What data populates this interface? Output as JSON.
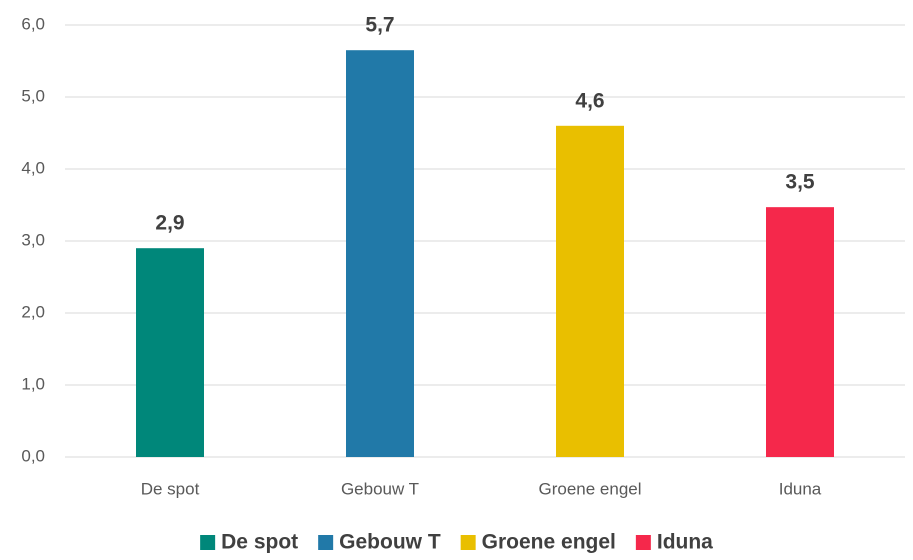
{
  "chart_data": {
    "type": "bar",
    "categories": [
      "De spot",
      "Gebouw T",
      "Groene engel",
      "Iduna"
    ],
    "values": [
      2.9,
      5.65,
      4.6,
      3.47
    ],
    "value_labels": [
      "2,9",
      "5,7",
      "4,6",
      "3,5"
    ],
    "colors": [
      "#00877a",
      "#2179a8",
      "#e9bf00",
      "#f5284b"
    ],
    "ylim": [
      0,
      6
    ],
    "yticks": [
      {
        "value": 0,
        "label": "0,0"
      },
      {
        "value": 1,
        "label": "1,0"
      },
      {
        "value": 2,
        "label": "2,0"
      },
      {
        "value": 3,
        "label": "3,0"
      },
      {
        "value": 4,
        "label": "4,0"
      },
      {
        "value": 5,
        "label": "5,0"
      },
      {
        "value": 6,
        "label": "6,0"
      }
    ],
    "grid": true,
    "legend": "bottom"
  }
}
